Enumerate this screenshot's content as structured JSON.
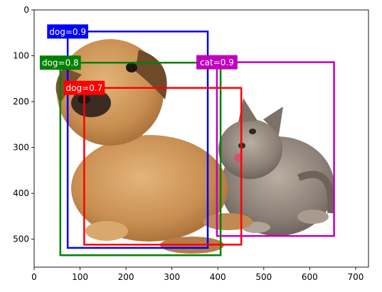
{
  "image": {
    "subject": "puppy-and-kitten-photo",
    "colors": {
      "background": "#ffffff",
      "frame": "#000000"
    }
  },
  "axes": {
    "xlim": [
      0,
      728
    ],
    "ylim": [
      561,
      0
    ],
    "x_ticks": [
      0,
      100,
      200,
      300,
      400,
      500,
      600,
      700
    ],
    "y_ticks": [
      0,
      100,
      200,
      300,
      400,
      500
    ],
    "x_tick_labels": [
      "0",
      "100",
      "200",
      "300",
      "400",
      "500",
      "600",
      "700"
    ],
    "y_tick_labels": [
      "0",
      "100",
      "200",
      "300",
      "400",
      "500"
    ]
  },
  "detections": [
    {
      "label": "dog=0.9",
      "color": "#0000ff",
      "x1": 73,
      "y1": 47,
      "x2": 378,
      "y2": 519
    },
    {
      "label": "dog=0.8",
      "color": "#008000",
      "x1": 57,
      "y1": 115,
      "x2": 406,
      "y2": 535
    },
    {
      "label": "dog=0.7",
      "color": "#ff0000",
      "x1": 109,
      "y1": 170,
      "x2": 451,
      "y2": 512
    },
    {
      "label": "cat=0.9",
      "color": "#bf00bf",
      "x1": 398,
      "y1": 114,
      "x2": 653,
      "y2": 493
    }
  ]
}
